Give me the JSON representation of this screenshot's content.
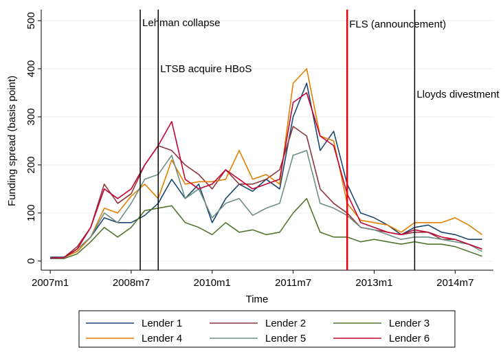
{
  "chart_data": {
    "type": "line",
    "x_label": "Time",
    "y_label": "Funding spread (basis point)",
    "x": [
      564,
      567,
      570,
      573,
      576,
      579,
      582,
      585,
      588,
      591,
      594,
      597,
      600,
      603,
      606,
      609,
      612,
      615,
      618,
      621,
      624,
      627,
      630,
      633,
      636,
      639,
      642,
      645,
      648,
      651,
      654,
      657,
      660
    ],
    "xlim": [
      562,
      662.5
    ],
    "xticks": [
      {
        "value": 564,
        "label": "2007m1"
      },
      {
        "value": 582,
        "label": "2008m7"
      },
      {
        "value": 600,
        "label": "2010m1"
      },
      {
        "value": 618,
        "label": "2011m7"
      },
      {
        "value": 636,
        "label": "2013m1"
      },
      {
        "value": 654,
        "label": "2014m7"
      }
    ],
    "ylim": [
      -19,
      523
    ],
    "yticks": [
      0,
      100,
      200,
      300,
      400,
      500
    ],
    "grid": true,
    "legend": "bottom",
    "series": [
      {
        "name": "Lender 1",
        "color": "#1a476f",
        "values": [
          8,
          8,
          20,
          50,
          90,
          80,
          80,
          95,
          120,
          170,
          130,
          160,
          80,
          130,
          160,
          145,
          170,
          150,
          300,
          370,
          230,
          270,
          160,
          100,
          90,
          75,
          55,
          70,
          75,
          60,
          55,
          45,
          45
        ]
      },
      {
        "name": "Lender 2",
        "color": "#90353b",
        "values": [
          6,
          7,
          30,
          70,
          160,
          120,
          140,
          200,
          240,
          230,
          200,
          180,
          150,
          190,
          160,
          160,
          170,
          190,
          280,
          260,
          150,
          120,
          100,
          70,
          65,
          60,
          55,
          60,
          60,
          45,
          45,
          35,
          25
        ]
      },
      {
        "name": "Lender 3",
        "color": "#55752f",
        "values": [
          5,
          5,
          15,
          40,
          70,
          50,
          70,
          105,
          110,
          115,
          80,
          70,
          55,
          80,
          60,
          65,
          55,
          60,
          100,
          130,
          60,
          50,
          50,
          40,
          45,
          40,
          35,
          40,
          35,
          35,
          30,
          20,
          10
        ]
      },
      {
        "name": "Lender 4",
        "color": "#e37e00",
        "values": [
          6,
          7,
          20,
          50,
          110,
          100,
          135,
          160,
          130,
          210,
          160,
          165,
          165,
          170,
          230,
          170,
          180,
          160,
          370,
          400,
          260,
          250,
          120,
          85,
          80,
          75,
          60,
          80,
          80,
          80,
          90,
          75,
          55
        ]
      },
      {
        "name": "Lender 5",
        "color": "#6e8e84",
        "values": [
          5,
          6,
          25,
          50,
          100,
          80,
          120,
          170,
          180,
          220,
          130,
          150,
          90,
          120,
          130,
          95,
          110,
          120,
          220,
          230,
          120,
          110,
          95,
          70,
          65,
          55,
          45,
          50,
          50,
          45,
          40,
          35,
          20
        ]
      },
      {
        "name": "Lender 6",
        "color": "#c10534",
        "values": [
          6,
          7,
          25,
          70,
          150,
          130,
          150,
          200,
          240,
          290,
          170,
          150,
          160,
          190,
          170,
          150,
          160,
          170,
          330,
          350,
          260,
          240,
          140,
          80,
          70,
          60,
          55,
          65,
          60,
          50,
          45,
          35,
          25
        ]
      }
    ],
    "events": [
      {
        "label": "Lehman collapse",
        "x": 584,
        "color": "#000000"
      },
      {
        "label": "LTSB acquire HBoS",
        "x": 588,
        "color": "#000000"
      },
      {
        "label": "FLS (announcement)",
        "x": 630,
        "color": "#e8000b"
      },
      {
        "label": "Lloyds divestment",
        "x": 645,
        "color": "#000000"
      }
    ]
  }
}
